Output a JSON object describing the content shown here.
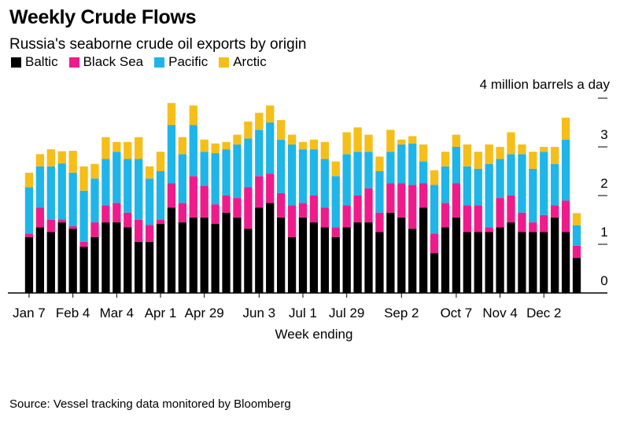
{
  "title": "Weekly Crude Flows",
  "subtitle": "Russia's seaborne crude oil exports by origin",
  "unit_label": "4 million barrels a day",
  "source": "Source: Vessel tracking data monitored by Bloomberg",
  "colors": {
    "Baltic": "#000000",
    "Black Sea": "#ee1c8b",
    "Pacific": "#1fb5e8",
    "Arctic": "#f6be19"
  },
  "chart_data": {
    "type": "bar",
    "stacked": true,
    "xlabel": "Week ending",
    "ylabel": "",
    "ylim": [
      0,
      4
    ],
    "yticks": [
      0,
      1,
      2,
      3,
      4
    ],
    "ytick_labels": [
      "0",
      "1",
      "2",
      "3",
      ""
    ],
    "xtick_labels": [
      "Jan 7",
      "Feb 4",
      "Mar 4",
      "Apr 1",
      "Apr 29",
      "Jun 3",
      "Jul 1",
      "Jul 29",
      "Sep 2",
      "Oct 7",
      "Nov 4",
      "Dec 2"
    ],
    "xtick_positions": [
      0,
      4,
      8,
      12,
      16,
      21,
      25,
      29,
      34,
      39,
      43,
      47
    ],
    "legend_position": "top-left",
    "grid": false,
    "series": [
      {
        "name": "Baltic",
        "values": [
          1.15,
          1.35,
          1.25,
          1.45,
          1.32,
          0.95,
          1.15,
          1.45,
          1.45,
          1.35,
          1.05,
          1.05,
          1.42,
          1.75,
          1.45,
          1.55,
          1.55,
          1.42,
          1.65,
          1.55,
          1.32,
          1.75,
          1.85,
          1.55,
          1.15,
          1.55,
          1.45,
          1.35,
          1.15,
          1.35,
          1.45,
          1.45,
          1.25,
          1.65,
          1.55,
          1.32,
          1.75,
          0.82,
          1.35,
          1.55,
          1.25,
          1.25,
          1.25,
          1.35,
          1.45,
          1.25,
          1.25,
          1.25,
          1.55,
          1.25,
          0.72
        ]
      },
      {
        "name": "Black Sea",
        "values": [
          0.07,
          0.4,
          0.25,
          0.06,
          0.05,
          0.1,
          0.3,
          0.35,
          0.4,
          0.3,
          0.45,
          0.35,
          0.08,
          0.5,
          0.4,
          0.85,
          0.65,
          0.4,
          0.35,
          0.4,
          0.85,
          0.65,
          0.6,
          0.5,
          0.65,
          0.3,
          0.55,
          0.4,
          0.2,
          0.45,
          0.55,
          0.7,
          0.4,
          0.6,
          0.7,
          0.9,
          0.5,
          0.4,
          0.5,
          0.7,
          0.55,
          0.55,
          0.1,
          0.6,
          0.55,
          0.4,
          0.2,
          0.35,
          0.25,
          0.65,
          0.25
        ]
      },
      {
        "name": "Pacific",
        "values": [
          0.95,
          0.85,
          1.1,
          1.15,
          1.1,
          1.05,
          0.9,
          0.95,
          1.05,
          1.1,
          1.25,
          0.95,
          1.0,
          1.2,
          1.0,
          1.05,
          0.7,
          1.05,
          0.95,
          1.1,
          1.0,
          0.95,
          1.05,
          1.1,
          1.25,
          1.1,
          0.95,
          1.0,
          1.05,
          1.05,
          0.9,
          0.75,
          0.85,
          0.65,
          0.8,
          0.85,
          0.45,
          1.0,
          0.75,
          0.75,
          0.8,
          0.75,
          1.3,
          0.8,
          0.85,
          1.2,
          1.1,
          1.3,
          0.85,
          1.25,
          0.42
        ]
      },
      {
        "name": "Arctic",
        "values": [
          0.3,
          0.25,
          0.35,
          0.25,
          0.45,
          0.5,
          0.3,
          0.45,
          0.2,
          0.35,
          0.45,
          0.25,
          0.4,
          0.45,
          0.35,
          0.4,
          0.25,
          0.2,
          0.15,
          0.2,
          0.35,
          0.35,
          0.35,
          0.4,
          0.2,
          0.15,
          0.2,
          0.35,
          0.3,
          0.45,
          0.5,
          0.35,
          0.3,
          0.45,
          0.1,
          0.15,
          0.35,
          0.3,
          0.3,
          0.25,
          0.45,
          0.35,
          0.4,
          0.25,
          0.45,
          0.2,
          0.35,
          0.1,
          0.35,
          0.45,
          0.25
        ]
      }
    ]
  }
}
